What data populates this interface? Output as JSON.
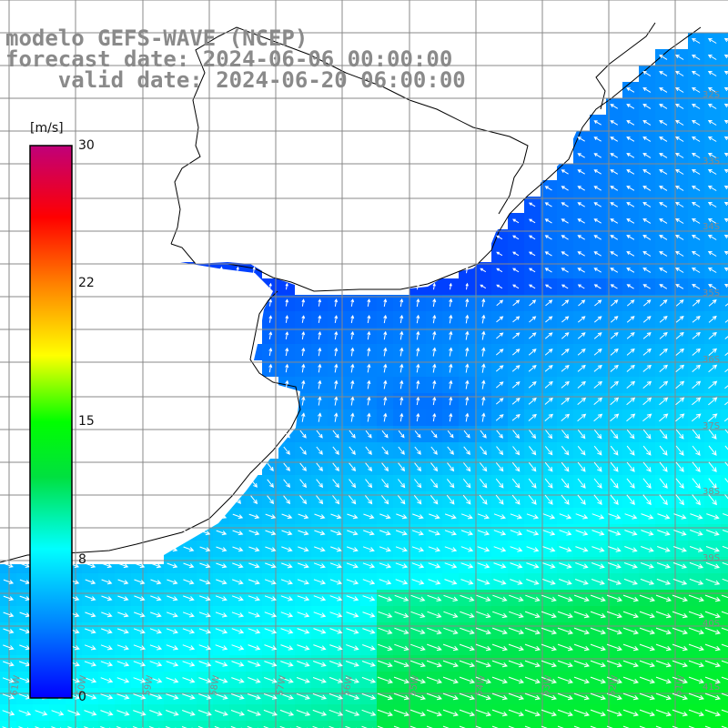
{
  "title": {
    "line1": "modelo GEFS-WAVE (NCEP)",
    "line2": "forecast date: 2024-06-06 00:00:00",
    "line3": "    valid date: 2024-06-20 06:00:00"
  },
  "colorbar": {
    "unit": "[m/s]",
    "ticks": [
      "30",
      "22",
      "15",
      "8",
      "0"
    ],
    "tick_values": [
      30,
      22,
      15,
      8,
      0
    ],
    "colors": [
      "#0000ff",
      "#0080ff",
      "#00ffff",
      "#00ff00",
      "#ffff00",
      "#ff8000",
      "#ff0000",
      "#c00080"
    ]
  },
  "map": {
    "lat_labels": [
      "32S",
      "33S",
      "34S",
      "35S",
      "36S",
      "37S",
      "38S",
      "39S",
      "40S",
      "41S"
    ],
    "lon_labels": [
      "61W",
      "60W",
      "59W",
      "58W",
      "57W",
      "56W",
      "55W",
      "54W",
      "53W",
      "52W",
      "51W"
    ],
    "land_color": "#ffffff",
    "grid_color": "#888888"
  }
}
